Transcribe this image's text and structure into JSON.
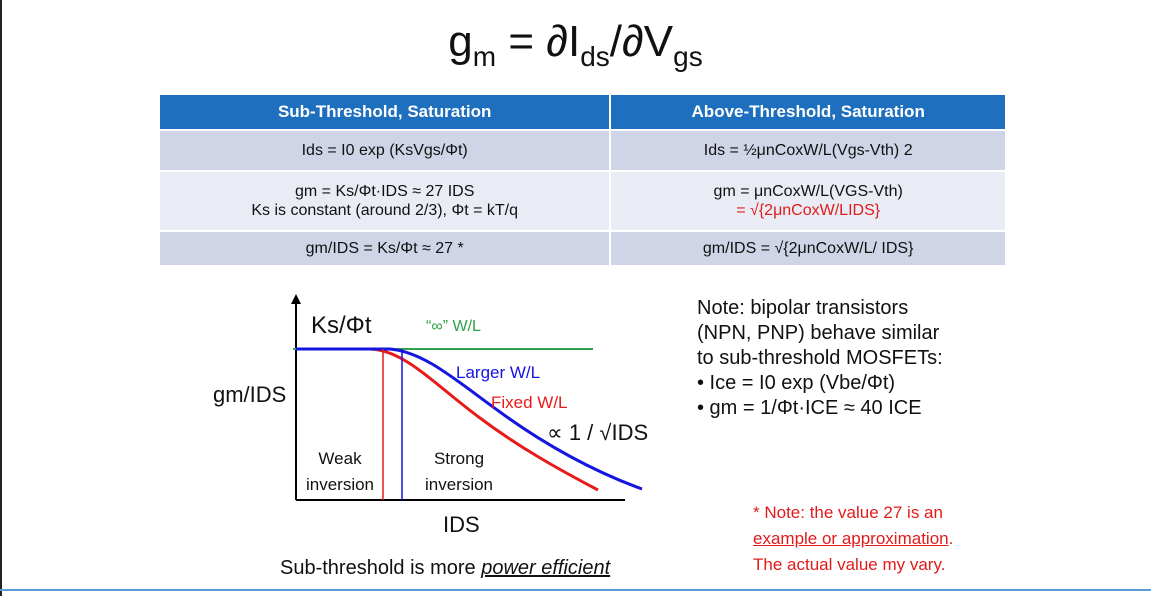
{
  "title": {
    "g": "g",
    "m": "m",
    "eq": " = ∂I",
    "ds": "ds",
    "mid": "/∂V",
    "gs": "gs"
  },
  "table": {
    "headers": [
      "Sub-Threshold, Saturation",
      "Above-Threshold, Saturation"
    ],
    "rows": [
      {
        "left": [
          "Ids = I0 exp (KsVgs/Φt)"
        ],
        "right": [
          "Ids = ½μnCoxW/L(Vgs-Vth) 2"
        ]
      },
      {
        "left": [
          "gm = Ks/Φt·IDS ≈ 27 IDS",
          "Ks is constant (around 2/3), Φt = kT/q"
        ],
        "right": [
          "gm = μnCoxW/L(VGS-Vth)",
          "= √{2μnCoxW/LIDS}"
        ]
      },
      {
        "left": [
          "gm/IDS = Ks/Φt ≈ 27 *"
        ],
        "right": [
          "gm/IDS = √{2μnCoxW/L/ IDS}"
        ]
      }
    ]
  },
  "graph": {
    "y_axis_top_label": "Ks/Φt",
    "y_axis_label": "gm/IDS",
    "x_axis_label": "IDS",
    "infinite_wl_label": "“∞” W/L",
    "larger_wl_label": "Larger W/L",
    "fixed_wl_label": "Fixed W/L",
    "slope_label": "∝ 1 / √IDS",
    "weak_label_1": "Weak",
    "weak_label_2": "inversion",
    "strong_label_1": "Strong",
    "strong_label_2": "inversion",
    "colors": {
      "infinite": "#2ea24a",
      "larger": "#1515e0",
      "fixed": "#e81b1b"
    }
  },
  "caption": {
    "prefix": "Sub-threshold is more ",
    "emph": "power efficient"
  },
  "note": {
    "line1": "Note: bipolar transistors",
    "line2": "(NPN, PNP) behave similar",
    "line3": "to sub-threshold MOSFETs:",
    "line4": "• Ice = I0 exp (Vbe/Φt)",
    "line5": "• gm = 1/Φt·ICE ≈ 40 ICE"
  },
  "red_note": {
    "line1": "* Note: the value 27 is an",
    "line2_underlined": "example or approximation",
    "line2_end": ".",
    "line3": "The actual value my vary."
  }
}
